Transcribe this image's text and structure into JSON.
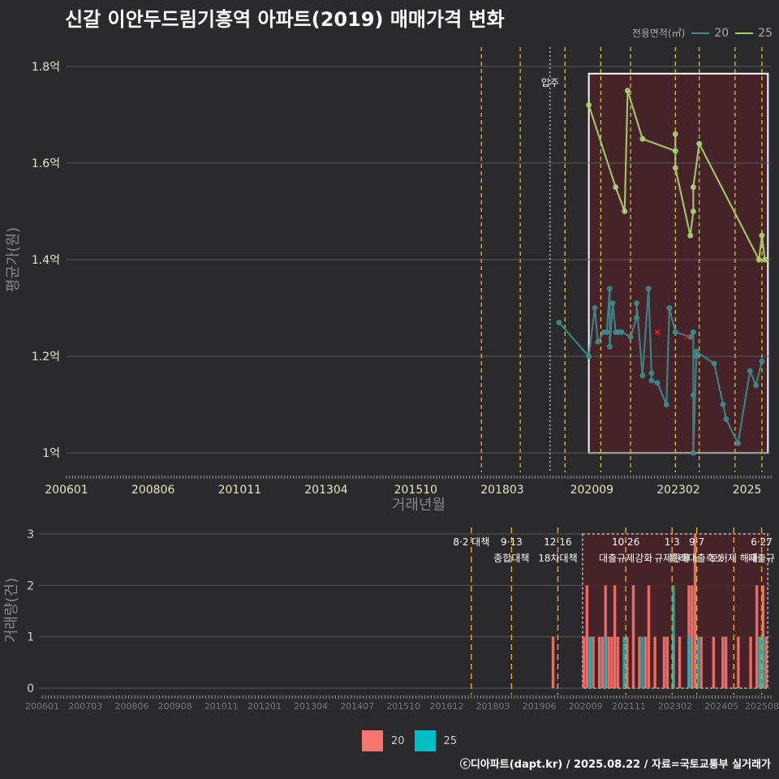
{
  "title": "신갈 이안두드림기흥역 아파트(2019) 매매가격 변화",
  "footer": "ⓒ디아파트(dapt.kr) / 2025.08.22 / 자료=국토교통부 실거래가",
  "legend_top": {
    "title": "전용면적(㎡)",
    "items": [
      {
        "label": "20",
        "color": "#3e8a8c"
      },
      {
        "label": "25",
        "color": "#a8d46f"
      }
    ]
  },
  "legend_bottom": {
    "items": [
      {
        "label": "20",
        "color": "#f8766d"
      },
      {
        "label": "25",
        "color": "#00bfc4"
      }
    ]
  },
  "chart_data": [
    {
      "type": "line",
      "title": "신갈 이안두드림기흥역 아파트(2019) 매매가격 변화",
      "xlabel": "거래년월",
      "ylabel": "평균가(원)",
      "ylim": [
        0.96,
        1.84
      ],
      "y_ticks": [
        {
          "v": 1.0,
          "label": "1억"
        },
        {
          "v": 1.2,
          "label": "1.2억"
        },
        {
          "v": 1.4,
          "label": "1.4억"
        },
        {
          "v": 1.6,
          "label": "1.6억"
        },
        {
          "v": 1.8,
          "label": "1.8억"
        }
      ],
      "x_range": [
        "2006-01",
        "2025-08"
      ],
      "x_ticks": [
        "200601",
        "200806",
        "201011",
        "201304",
        "201510",
        "201803",
        "202009",
        "202302",
        "2025"
      ],
      "event_lines": [
        "2017-08",
        "2018-09",
        "2019-12",
        "2020-12",
        "2021-10",
        "2023-01",
        "2023-09",
        "2024-09",
        "2025-06"
      ],
      "move_in_line": {
        "date": "2019-07",
        "label": "입주"
      },
      "highlight_range": [
        "2020-08",
        "2025-08"
      ],
      "series": [
        {
          "name": "25",
          "points": [
            [
              "2020-08",
              1.72
            ],
            [
              "2021-08",
              1.5
            ],
            [
              "2021-09",
              1.75
            ],
            [
              "2022-02",
              1.65
            ],
            [
              "2023-01",
              1.625
            ],
            [
              "2023-01",
              1.66
            ],
            [
              "2023-01",
              1.59
            ],
            [
              "2023-06",
              1.45
            ],
            [
              "2023-07",
              1.5
            ],
            [
              "2023-07",
              1.55
            ],
            [
              "2023-09",
              1.64
            ],
            [
              "2025-05",
              1.4
            ],
            [
              "2025-06",
              1.45
            ],
            [
              "2025-07",
              1.4
            ],
            [
              "2021-05",
              1.55
            ]
          ]
        },
        {
          "name": "20",
          "points": [
            [
              "2019-10",
              1.27
            ],
            [
              "2020-08",
              1.2
            ],
            [
              "2020-10",
              1.3
            ],
            [
              "2020-11",
              1.23
            ],
            [
              "2021-01",
              1.25
            ],
            [
              "2021-02",
              1.25
            ],
            [
              "2021-03",
              1.34
            ],
            [
              "2021-03",
              1.22
            ],
            [
              "2021-04",
              1.31
            ],
            [
              "2021-05",
              1.25
            ],
            [
              "2021-06",
              1.25
            ],
            [
              "2021-07",
              1.25
            ],
            [
              "2021-10",
              1.24
            ],
            [
              "2021-12",
              1.28
            ],
            [
              "2021-12",
              1.31
            ],
            [
              "2022-02",
              1.16
            ],
            [
              "2022-04",
              1.34
            ],
            [
              "2022-05",
              1.165
            ],
            [
              "2022-05",
              1.15
            ],
            [
              "2022-07",
              1.145
            ],
            [
              "2022-10",
              1.1
            ],
            [
              "2022-11",
              1.3
            ],
            [
              "2023-01",
              1.25
            ],
            [
              "2023-06",
              1.24
            ],
            [
              "2023-07",
              1.25
            ],
            [
              "2023-07",
              1.12
            ],
            [
              "2023-08",
              1.2
            ],
            [
              "2023-08",
              1.21
            ],
            [
              "2023-07",
              1.0
            ],
            [
              "2024-02",
              1.185
            ],
            [
              "2024-05",
              1.1
            ],
            [
              "2024-06",
              1.07
            ],
            [
              "2024-10",
              1.02
            ],
            [
              "2025-02",
              1.17
            ],
            [
              "2025-04",
              1.14
            ],
            [
              "2025-06",
              1.19
            ]
          ]
        }
      ],
      "cancelled_marks": [
        [
          "2022-07",
          1.25
        ],
        [
          "2023-05",
          1.24
        ]
      ]
    },
    {
      "type": "bar",
      "ylabel": "거래량(건)",
      "ylim": [
        0,
        3
      ],
      "y_ticks": [
        0,
        1,
        2,
        3
      ],
      "x_ticks": [
        "200601",
        "200703",
        "200806",
        "200908",
        "201011",
        "201201",
        "201304",
        "201407",
        "201510",
        "201612",
        "201803",
        "201906",
        "202009",
        "202111",
        "202302",
        "202405",
        "202508"
      ],
      "policy_events": [
        {
          "date": "2017-08",
          "label1": "8·2 대책",
          "label2": ""
        },
        {
          "date": "2018-09",
          "label1": "9·13",
          "label2": "종합대책"
        },
        {
          "date": "2019-12",
          "label1": "12·16",
          "label2": "18차대책"
        },
        {
          "date": "2021-10",
          "label1": "10·26",
          "label2": "대출규제강화"
        },
        {
          "date": "2023-01",
          "label1": "1·3",
          "label2": "규제완화"
        },
        {
          "date": "2023-09",
          "label1": "9·7",
          "label2": "특례대출축소"
        },
        {
          "date": "2025-06",
          "label1": "6·27",
          "label2": "대출규"
        },
        {
          "date": "2024-09",
          "label1": "",
          "label2": "토허제 해제"
        }
      ],
      "series": [
        {
          "name": "20",
          "bars": [
            [
              "2019-10",
              1
            ],
            [
              "2020-08",
              1
            ],
            [
              "2020-09",
              2
            ],
            [
              "2020-10",
              1
            ],
            [
              "2020-11",
              1
            ],
            [
              "2021-01",
              1
            ],
            [
              "2021-02",
              1
            ],
            [
              "2021-03",
              2
            ],
            [
              "2021-04",
              1
            ],
            [
              "2021-05",
              1
            ],
            [
              "2021-06",
              2
            ],
            [
              "2021-07",
              1
            ],
            [
              "2021-10",
              1
            ],
            [
              "2021-12",
              2
            ],
            [
              "2022-02",
              1
            ],
            [
              "2022-04",
              1
            ],
            [
              "2022-05",
              2
            ],
            [
              "2022-07",
              1
            ],
            [
              "2022-10",
              1
            ],
            [
              "2022-11",
              1
            ],
            [
              "2023-01",
              1
            ],
            [
              "2023-03",
              1
            ],
            [
              "2023-06",
              2
            ],
            [
              "2023-07",
              2
            ],
            [
              "2023-08",
              3
            ],
            [
              "2023-10",
              1
            ],
            [
              "2024-02",
              1
            ],
            [
              "2024-05",
              1
            ],
            [
              "2024-06",
              1
            ],
            [
              "2024-10",
              1
            ],
            [
              "2025-02",
              1
            ],
            [
              "2025-04",
              2
            ],
            [
              "2025-05",
              1
            ],
            [
              "2025-06",
              2
            ],
            [
              "2025-07",
              1
            ]
          ]
        },
        {
          "name": "25",
          "bars": [
            [
              "2020-10",
              1
            ],
            [
              "2021-03",
              1
            ],
            [
              "2021-09",
              1
            ],
            [
              "2022-03",
              1
            ],
            [
              "2023-01",
              2
            ],
            [
              "2023-06",
              1
            ],
            [
              "2023-09",
              1
            ],
            [
              "2025-05",
              1
            ],
            [
              "2025-06",
              1
            ]
          ]
        }
      ]
    }
  ]
}
